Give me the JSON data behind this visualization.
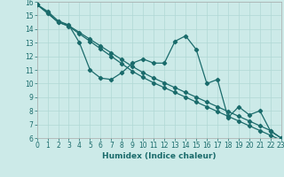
{
  "xlabel": "Humidex (Indice chaleur)",
  "x": [
    0,
    1,
    2,
    3,
    4,
    5,
    6,
    7,
    8,
    9,
    10,
    11,
    12,
    13,
    14,
    15,
    16,
    17,
    18,
    19,
    20,
    21,
    22,
    23
  ],
  "line_data": [
    15.8,
    15.3,
    14.6,
    14.3,
    13.0,
    11.0,
    10.4,
    10.3,
    10.8,
    11.5,
    11.8,
    11.5,
    11.5,
    13.1,
    13.5,
    12.5,
    10.0,
    10.3,
    7.5,
    8.3,
    7.7,
    8.0,
    6.5,
    6.0
  ],
  "line_upper": [
    15.8,
    15.2,
    14.5,
    14.25,
    13.75,
    13.25,
    12.75,
    12.25,
    11.75,
    11.25,
    10.8,
    10.4,
    10.05,
    9.7,
    9.35,
    9.0,
    8.65,
    8.3,
    7.95,
    7.6,
    7.25,
    6.9,
    6.55,
    6.0
  ],
  "line_lower": [
    15.8,
    15.15,
    14.5,
    14.2,
    13.65,
    13.1,
    12.55,
    12.0,
    11.45,
    10.9,
    10.45,
    10.05,
    9.7,
    9.35,
    9.0,
    8.65,
    8.3,
    7.95,
    7.6,
    7.25,
    6.9,
    6.55,
    6.2,
    5.85
  ],
  "line_color": "#1a6b6b",
  "bg_color": "#cceae8",
  "grid_color": "#b0d8d5",
  "xlim": [
    0,
    23
  ],
  "ylim": [
    6,
    16
  ],
  "yticks": [
    6,
    7,
    8,
    9,
    10,
    11,
    12,
    13,
    14,
    15,
    16
  ],
  "xticks": [
    0,
    1,
    2,
    3,
    4,
    5,
    6,
    7,
    8,
    9,
    10,
    11,
    12,
    13,
    14,
    15,
    16,
    17,
    18,
    19,
    20,
    21,
    22,
    23
  ],
  "tick_fontsize": 5.5,
  "xlabel_fontsize": 6.5
}
